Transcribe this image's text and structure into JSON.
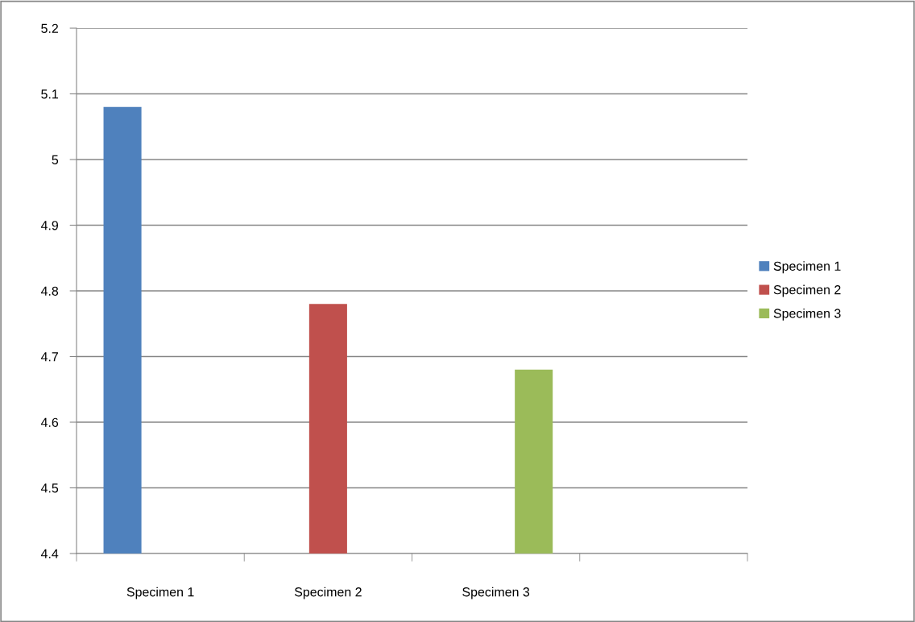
{
  "chart_data": {
    "type": "bar",
    "categories": [
      "Specimen 1",
      "Specimen 2",
      "Specimen 3",
      null
    ],
    "series": [
      {
        "name": "Specimen 1",
        "color": "#4f81bd",
        "values": [
          5.08,
          null,
          null,
          null
        ]
      },
      {
        "name": "Specimen 2",
        "color": "#c0504d",
        "values": [
          null,
          4.78,
          null,
          null
        ]
      },
      {
        "name": "Specimen 3",
        "color": "#9bbb59",
        "values": [
          null,
          null,
          4.68,
          null
        ]
      }
    ],
    "ylim": [
      4.4,
      5.2
    ],
    "yticks": [
      4.4,
      4.5,
      4.6,
      4.7,
      4.8,
      4.9,
      5,
      5.1,
      5.2
    ],
    "grid": "y",
    "legend": "right"
  }
}
